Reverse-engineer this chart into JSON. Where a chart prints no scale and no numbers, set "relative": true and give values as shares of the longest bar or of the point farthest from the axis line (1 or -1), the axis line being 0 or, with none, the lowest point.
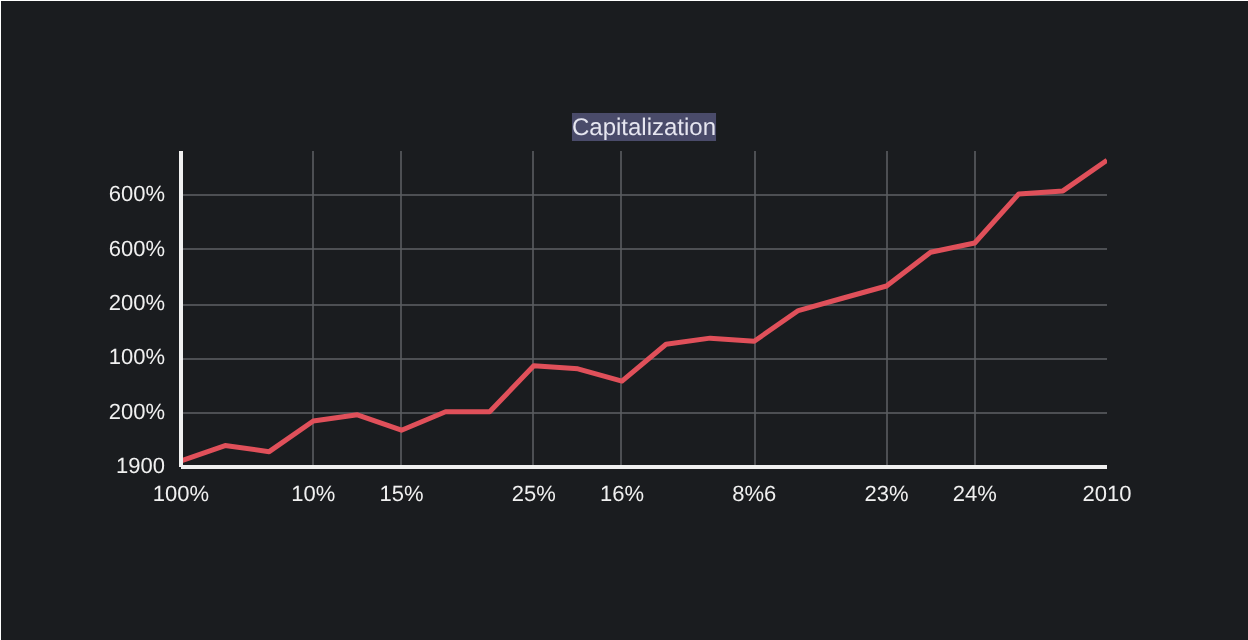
{
  "chart_data": {
    "type": "line",
    "title": "Capitalization",
    "relative": true,
    "categories": [
      "100%",
      null,
      null,
      "10%",
      null,
      "15%",
      null,
      null,
      "25%",
      null,
      "16%",
      null,
      null,
      "8%6",
      null,
      null,
      "23%",
      null,
      "24%",
      null,
      null,
      "2010"
    ],
    "series": [
      {
        "color": "#e0505a",
        "values": [
          0.02,
          0.07,
          0.05,
          0.15,
          0.17,
          0.12,
          0.18,
          0.18,
          0.33,
          0.32,
          0.28,
          0.4,
          0.42,
          0.41,
          0.51,
          0.55,
          0.59,
          0.7,
          0.73,
          0.89,
          0.9,
          1
        ]
      }
    ],
    "annotations": [
      "1900",
      "200%",
      "100%",
      "200%",
      "600%",
      "600%"
    ],
    "grid": true,
    "marker": "none",
    "line_style": "solid"
  }
}
